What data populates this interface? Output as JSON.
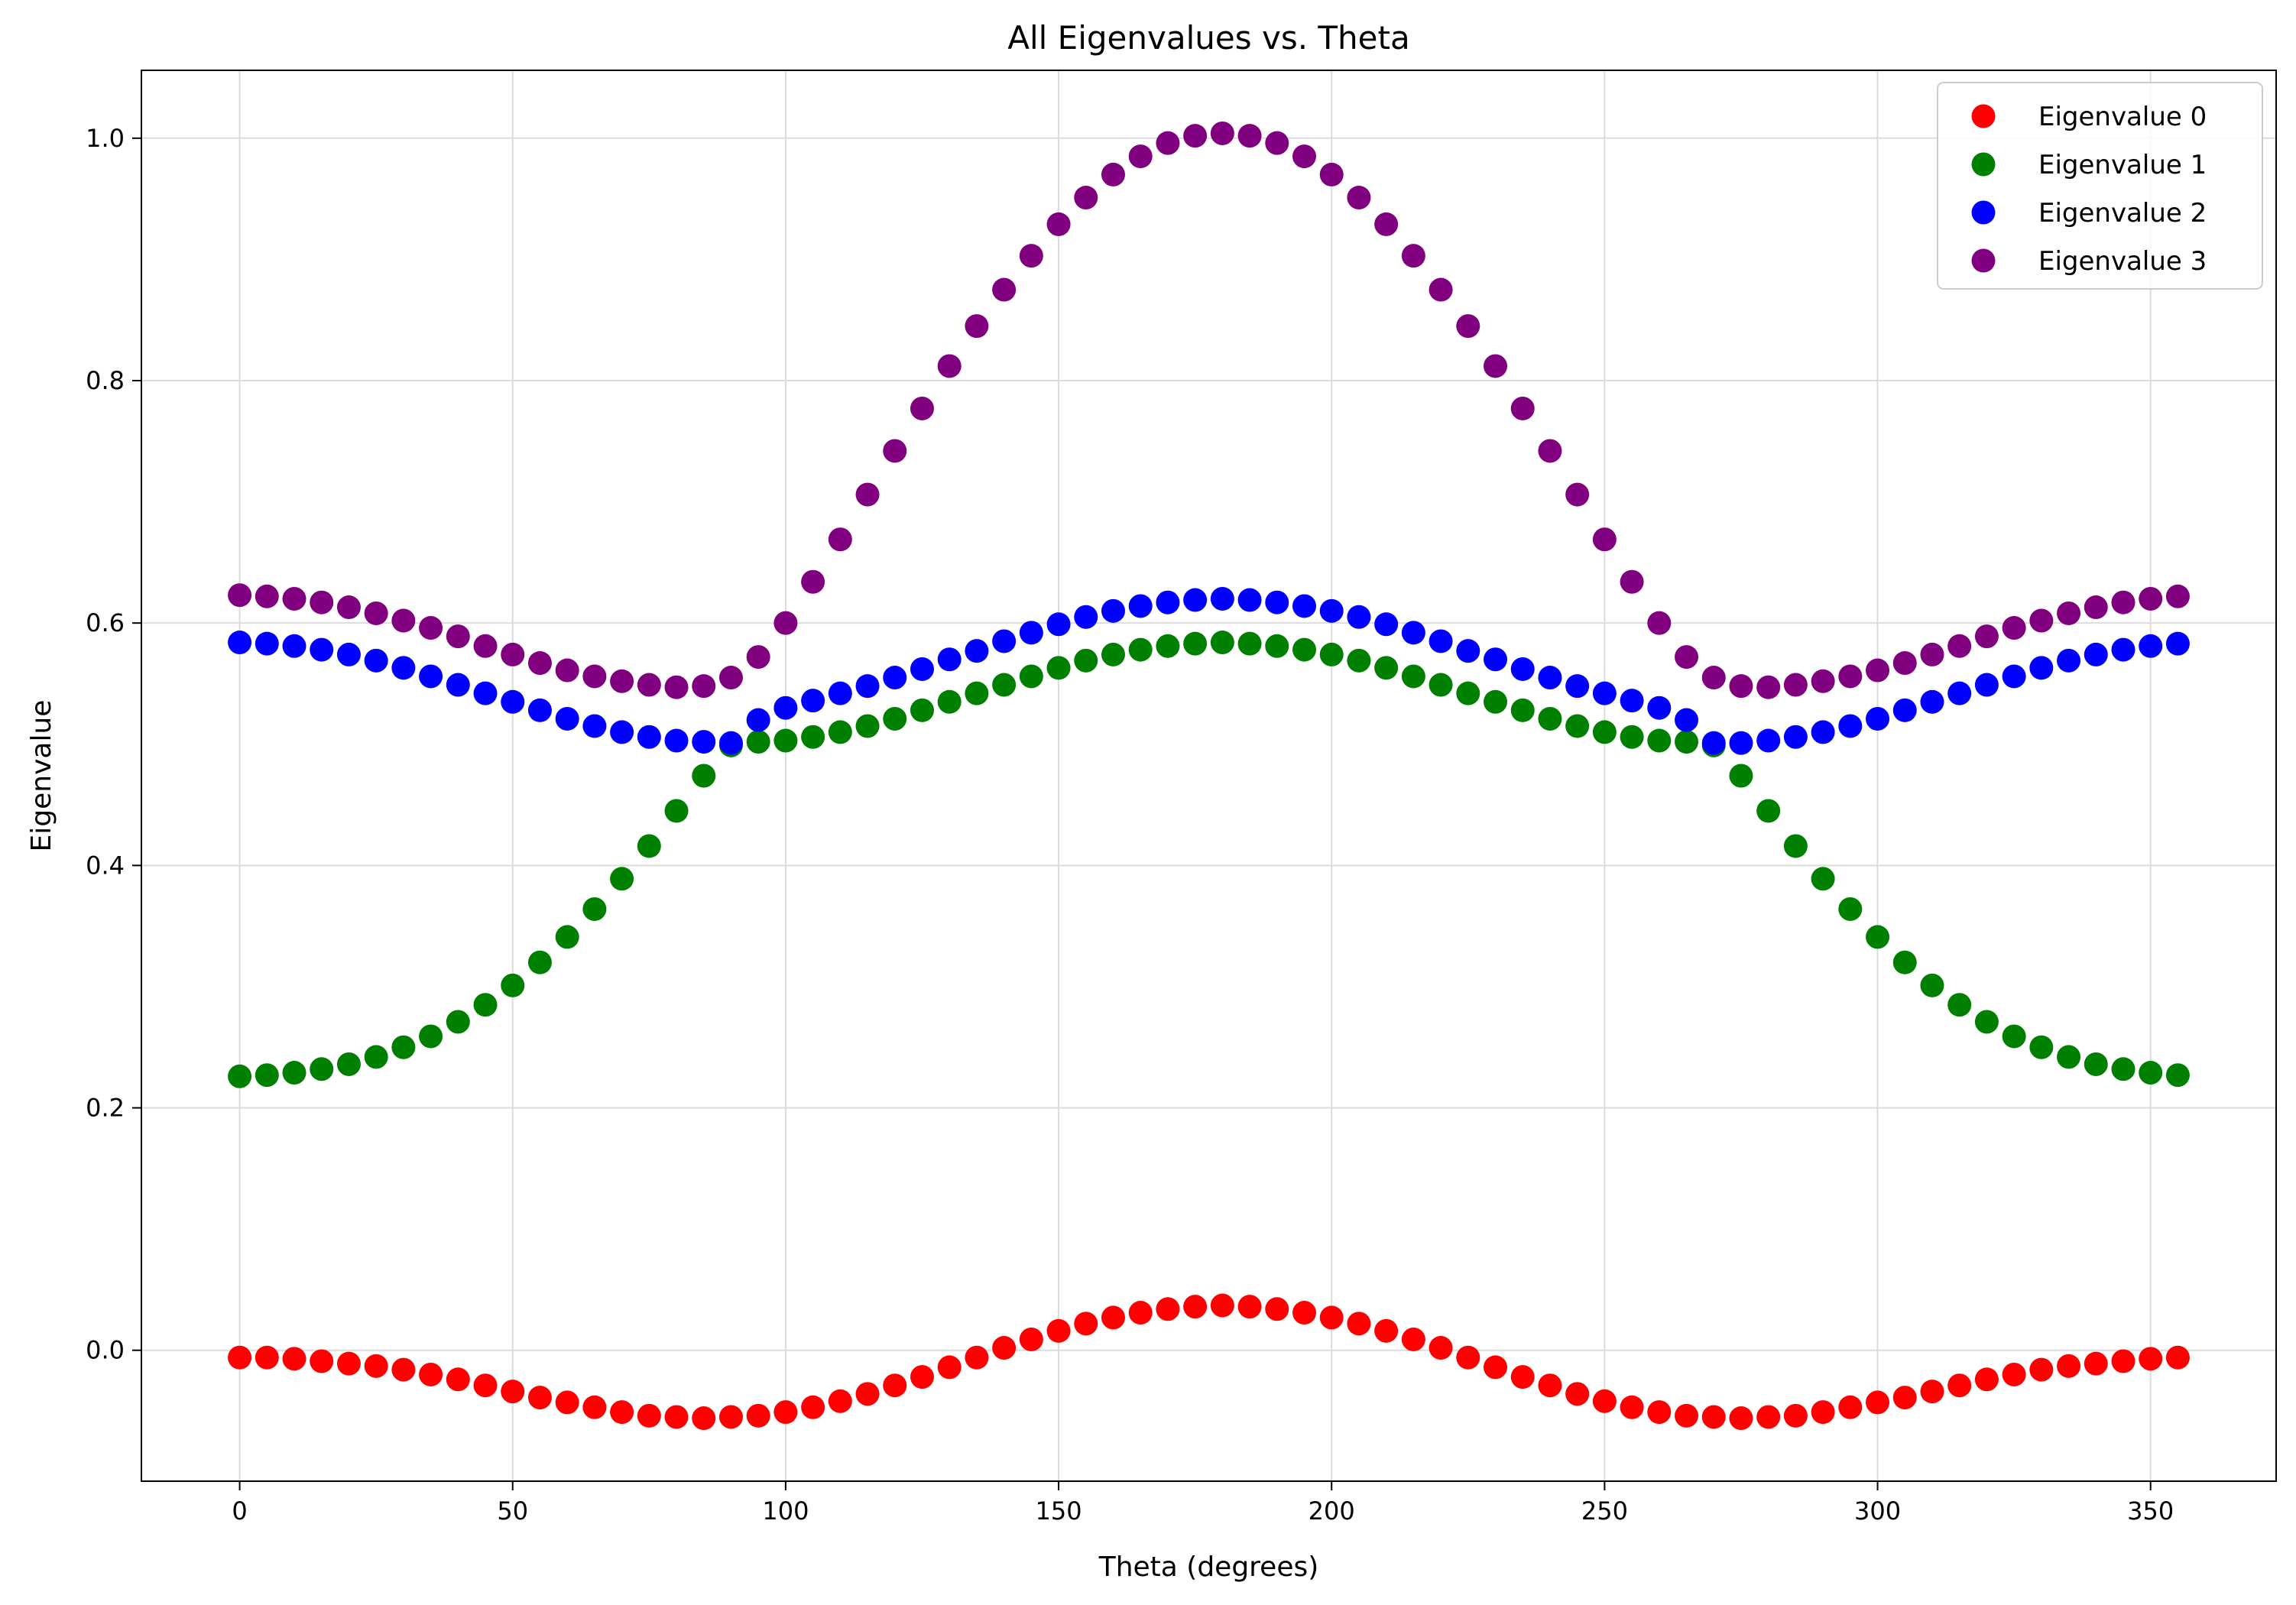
{
  "chart_data": {
    "type": "scatter",
    "title": "All Eigenvalues vs. Theta",
    "xlabel": "Theta (degrees)",
    "ylabel": "Eigenvalue",
    "xlim": [
      -18,
      373
    ],
    "ylim": [
      -0.108,
      1.056
    ],
    "xticks": [
      0,
      50,
      100,
      150,
      200,
      250,
      300,
      350
    ],
    "yticks": [
      0.0,
      0.2,
      0.4,
      0.6,
      0.8,
      1.0
    ],
    "xtick_labels": [
      "0",
      "50",
      "100",
      "150",
      "200",
      "250",
      "300",
      "350"
    ],
    "ytick_labels": [
      "0.0",
      "0.2",
      "0.4",
      "0.6",
      "0.8",
      "1.0"
    ],
    "grid": true,
    "legend_position": "top-right",
    "x": [
      0,
      5,
      10,
      15,
      20,
      25,
      30,
      35,
      40,
      45,
      50,
      55,
      60,
      65,
      70,
      75,
      80,
      85,
      90,
      95,
      100,
      105,
      110,
      115,
      120,
      125,
      130,
      135,
      140,
      145,
      150,
      155,
      160,
      165,
      170,
      175,
      180,
      185,
      190,
      195,
      200,
      205,
      210,
      215,
      220,
      225,
      230,
      235,
      240,
      245,
      250,
      255,
      260,
      265,
      270,
      275,
      280,
      285,
      290,
      295,
      300,
      305,
      310,
      315,
      320,
      325,
      330,
      335,
      340,
      345,
      350,
      355
    ],
    "series": [
      {
        "name": "Eigenvalue 0",
        "color": "#ff0000",
        "values": [
          -0.006,
          -0.006,
          -0.007,
          -0.009,
          -0.011,
          -0.013,
          -0.016,
          -0.02,
          -0.024,
          -0.029,
          -0.034,
          -0.039,
          -0.043,
          -0.047,
          -0.051,
          -0.054,
          -0.055,
          -0.056,
          -0.055,
          -0.054,
          -0.051,
          -0.047,
          -0.042,
          -0.036,
          -0.029,
          -0.022,
          -0.014,
          -0.006,
          0.002,
          0.009,
          0.016,
          0.022,
          0.027,
          0.031,
          0.034,
          0.036,
          0.037,
          0.036,
          0.034,
          0.031,
          0.027,
          0.022,
          0.016,
          0.009,
          0.002,
          -0.006,
          -0.014,
          -0.022,
          -0.029,
          -0.036,
          -0.042,
          -0.047,
          -0.051,
          -0.054,
          -0.055,
          -0.056,
          -0.055,
          -0.054,
          -0.051,
          -0.047,
          -0.043,
          -0.039,
          -0.034,
          -0.029,
          -0.024,
          -0.02,
          -0.016,
          -0.013,
          -0.011,
          -0.009,
          -0.007,
          -0.006
        ]
      },
      {
        "name": "Eigenvalue 1",
        "color": "#008000",
        "values": [
          0.226,
          0.227,
          0.229,
          0.232,
          0.236,
          0.242,
          0.25,
          0.259,
          0.271,
          0.285,
          0.301,
          0.32,
          0.341,
          0.364,
          0.389,
          0.416,
          0.445,
          0.474,
          0.499,
          0.502,
          0.503,
          0.506,
          0.51,
          0.515,
          0.521,
          0.528,
          0.535,
          0.542,
          0.549,
          0.556,
          0.563,
          0.569,
          0.574,
          0.578,
          0.581,
          0.583,
          0.584,
          0.583,
          0.581,
          0.578,
          0.574,
          0.569,
          0.563,
          0.556,
          0.549,
          0.542,
          0.535,
          0.528,
          0.521,
          0.515,
          0.51,
          0.506,
          0.503,
          0.502,
          0.499,
          0.474,
          0.445,
          0.416,
          0.389,
          0.364,
          0.341,
          0.32,
          0.301,
          0.285,
          0.271,
          0.259,
          0.25,
          0.242,
          0.236,
          0.232,
          0.229,
          0.227
        ]
      },
      {
        "name": "Eigenvalue 2",
        "color": "#0000ff",
        "values": [
          0.584,
          0.583,
          0.581,
          0.578,
          0.574,
          0.569,
          0.563,
          0.556,
          0.549,
          0.542,
          0.535,
          0.528,
          0.521,
          0.515,
          0.51,
          0.506,
          0.503,
          0.502,
          0.501,
          0.52,
          0.53,
          0.536,
          0.542,
          0.548,
          0.555,
          0.562,
          0.57,
          0.577,
          0.585,
          0.592,
          0.599,
          0.605,
          0.61,
          0.614,
          0.617,
          0.619,
          0.62,
          0.619,
          0.617,
          0.614,
          0.61,
          0.605,
          0.599,
          0.592,
          0.585,
          0.577,
          0.57,
          0.562,
          0.555,
          0.548,
          0.542,
          0.536,
          0.53,
          0.52,
          0.501,
          0.501,
          0.503,
          0.506,
          0.51,
          0.515,
          0.521,
          0.528,
          0.535,
          0.542,
          0.549,
          0.556,
          0.563,
          0.569,
          0.574,
          0.578,
          0.581,
          0.583
        ]
      },
      {
        "name": "Eigenvalue 3",
        "color": "#800080",
        "values": [
          0.623,
          0.622,
          0.62,
          0.617,
          0.613,
          0.608,
          0.602,
          0.596,
          0.589,
          0.581,
          0.574,
          0.567,
          0.561,
          0.556,
          0.552,
          0.549,
          0.547,
          0.548,
          0.555,
          0.572,
          0.6,
          0.634,
          0.669,
          0.706,
          0.742,
          0.777,
          0.812,
          0.845,
          0.875,
          0.903,
          0.929,
          0.951,
          0.97,
          0.985,
          0.996,
          1.002,
          1.004,
          1.002,
          0.996,
          0.985,
          0.97,
          0.951,
          0.929,
          0.903,
          0.875,
          0.845,
          0.812,
          0.777,
          0.742,
          0.706,
          0.669,
          0.634,
          0.6,
          0.572,
          0.555,
          0.548,
          0.547,
          0.549,
          0.552,
          0.556,
          0.561,
          0.567,
          0.574,
          0.581,
          0.589,
          0.596,
          0.602,
          0.608,
          0.613,
          0.617,
          0.62,
          0.622
        ]
      }
    ]
  }
}
